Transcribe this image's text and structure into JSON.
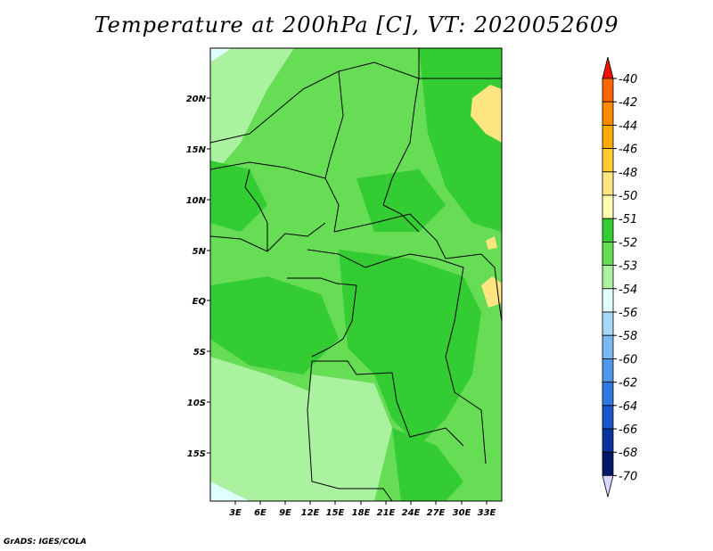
{
  "title": "Temperature at 200hPa [C], VT: 2020052609",
  "credit": "GrADS: IGES/COLA",
  "map": {
    "lat_labels": [
      "20N",
      "15N",
      "10N",
      "5N",
      "EQ",
      "5S",
      "10S",
      "15S"
    ],
    "lat_values": [
      20,
      15,
      10,
      5,
      0,
      -5,
      -10,
      -15
    ],
    "lon_labels": [
      "3E",
      "6E",
      "9E",
      "12E",
      "15E",
      "18E",
      "21E",
      "24E",
      "27E",
      "30E",
      "33E"
    ],
    "lon_values": [
      3,
      6,
      9,
      12,
      15,
      18,
      21,
      24,
      27,
      30,
      33
    ],
    "lat_range": [
      -20,
      25
    ],
    "lon_range": [
      0,
      35
    ]
  },
  "colorbar": {
    "labels": [
      "-40",
      "-42",
      "-44",
      "-46",
      "-48",
      "-50",
      "-51",
      "-52",
      "-53",
      "-54",
      "-56",
      "-58",
      "-60",
      "-62",
      "-64",
      "-66",
      "-68",
      "-70"
    ],
    "colors": [
      "#ff3300",
      "#ff6600",
      "#ff8a00",
      "#ffaa00",
      "#ffcc33",
      "#ffe680",
      "#ffffb3",
      "#33cc33",
      "#66dd55",
      "#aaf2a0",
      "#e0ffff",
      "#a8d8f8",
      "#7ab8f0",
      "#5099e8",
      "#2f79e0",
      "#1a56c8",
      "#0a33a0",
      "#001a66"
    ],
    "cap_top_color": "#ee1100",
    "cap_bottom_color": "#d8d8ff"
  }
}
